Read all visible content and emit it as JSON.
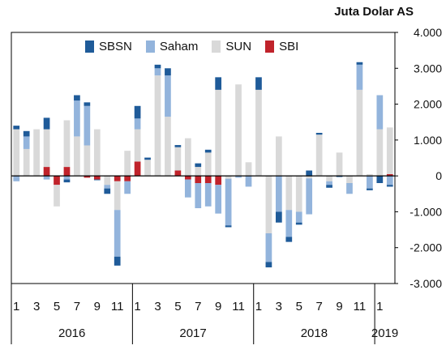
{
  "chart_data": {
    "type": "bar",
    "stacked": true,
    "unit_label": "Juta Dolar AS",
    "y_axis": {
      "range": [
        -3000,
        4000
      ],
      "ticks": [
        4000,
        3000,
        2000,
        1000,
        0,
        -1000,
        -2000,
        -3000
      ],
      "tick_labels": [
        "4.000",
        "3.000",
        "2.000",
        "1.000",
        "0",
        "-1.000",
        "-2.000",
        "-3.000"
      ],
      "position": "right"
    },
    "x_axis": {
      "month_labels": [
        "1",
        "3",
        "5",
        "7",
        "9",
        "11",
        "1",
        "3",
        "5",
        "7",
        "9",
        "11",
        "1",
        "3",
        "5",
        "7",
        "9",
        "11",
        "1"
      ],
      "year_labels": [
        "2016",
        "2017",
        "2018",
        "2019"
      ]
    },
    "legend": [
      "SBSN",
      "Saham",
      "SUN",
      "SBI"
    ],
    "colors": {
      "SBSN": "#1f5b99",
      "Saham": "#93b4dc",
      "SUN": "#d9d9d9",
      "SBI": "#c0232b"
    },
    "categories": [
      "2016-01",
      "2016-02",
      "2016-03",
      "2016-04",
      "2016-05",
      "2016-06",
      "2016-07",
      "2016-08",
      "2016-09",
      "2016-10",
      "2016-11",
      "2016-12",
      "2017-01",
      "2017-02",
      "2017-03",
      "2017-04",
      "2017-05",
      "2017-06",
      "2017-07",
      "2017-08",
      "2017-09",
      "2017-10",
      "2017-11",
      "2017-12",
      "2018-01",
      "2018-02",
      "2018-03",
      "2018-04",
      "2018-05",
      "2018-06",
      "2018-07",
      "2018-08",
      "2018-09",
      "2018-10",
      "2018-11",
      "2018-12",
      "2019-01",
      "2019-02"
    ],
    "series": [
      {
        "name": "SBI",
        "values": [
          0,
          0,
          0,
          250,
          -250,
          250,
          0,
          -50,
          -100,
          0,
          -150,
          -150,
          400,
          0,
          0,
          0,
          150,
          -100,
          -200,
          -200,
          -250,
          0,
          0,
          0,
          0,
          0,
          0,
          0,
          0,
          0,
          0,
          0,
          0,
          0,
          0,
          0,
          0,
          50
        ]
      },
      {
        "name": "SUN",
        "values": [
          1300,
          750,
          1300,
          1050,
          -600,
          1300,
          1100,
          850,
          1300,
          -250,
          -800,
          700,
          900,
          450,
          2800,
          1650,
          650,
          1050,
          250,
          650,
          2400,
          -80,
          2550,
          380,
          2400,
          -1600,
          1100,
          -950,
          -1000,
          -70,
          1150,
          -150,
          650,
          -200,
          2400,
          50,
          1300,
          1300
        ]
      },
      {
        "name": "Saham",
        "values": [
          -150,
          350,
          0,
          -100,
          0,
          -100,
          1000,
          1100,
          0,
          -100,
          -1300,
          -350,
          300,
          0,
          200,
          1150,
          0,
          -500,
          -700,
          -650,
          -800,
          -1300,
          -50,
          -300,
          0,
          -800,
          -1000,
          -750,
          -300,
          -1000,
          0,
          -100,
          0,
          -300,
          700,
          -350,
          950,
          -250
        ]
      },
      {
        "name": "SBSN",
        "values": [
          100,
          150,
          0,
          320,
          0,
          -80,
          150,
          100,
          -20,
          -150,
          -250,
          0,
          350,
          60,
          100,
          200,
          60,
          0,
          100,
          80,
          350,
          -50,
          0,
          0,
          350,
          -150,
          -300,
          -140,
          -60,
          150,
          50,
          -80,
          -30,
          0,
          70,
          -50,
          -200,
          -50
        ]
      }
    ]
  }
}
